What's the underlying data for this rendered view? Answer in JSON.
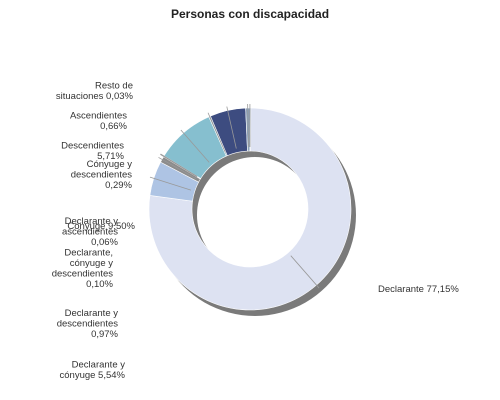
{
  "chart_data": {
    "type": "pie",
    "variant": "donut",
    "title": "Personas con discapacidad",
    "legend": "none",
    "slices": [
      {
        "name": "Declarante",
        "value": 77.15,
        "color": "#dde2f2",
        "label_lines": [
          "Declarante 77,15%"
        ]
      },
      {
        "name": "Declarante y cónyuge",
        "value": 5.54,
        "color": "#aec4e4",
        "label_lines": [
          "Declarante y",
          "cónyuge 5,54%"
        ]
      },
      {
        "name": "Declarante y descendientes",
        "value": 0.97,
        "color": "#8c8c8c",
        "label_lines": [
          "Declarante y",
          "descendientes",
          "0,97%"
        ]
      },
      {
        "name": "Declarante, cónyuge y descendientes",
        "value": 0.1,
        "color": "#7b87a8",
        "label_lines": [
          "Declarante,",
          "cónyuge y",
          "descendientes",
          "0,10%"
        ]
      },
      {
        "name": "Declarante y ascendientes",
        "value": 0.06,
        "color": "#5c6f98",
        "label_lines": [
          "Declarante y",
          "ascendientes",
          "0,06%"
        ]
      },
      {
        "name": "Cónyuge",
        "value": 9.5,
        "color": "#86bfcf",
        "label_lines": [
          "Cónyuge 9,50%"
        ]
      },
      {
        "name": "Cónyuge y descendientes",
        "value": 0.29,
        "color": "#6f8fa3",
        "label_lines": [
          "Cónyuge y",
          "descendientes",
          "0,29%"
        ]
      },
      {
        "name": "Descendientes",
        "value": 5.71,
        "color": "#3d4c80",
        "label_lines": [
          "Descendientes",
          "5,71%"
        ]
      },
      {
        "name": "Ascendientes",
        "value": 0.66,
        "color": "#8aa0b8",
        "label_lines": [
          "Ascendientes",
          "0,66%"
        ]
      },
      {
        "name": "Resto de situaciones",
        "value": 0.03,
        "color": "#6f8a9e",
        "label_lines": [
          "Resto de",
          "situaciones 0,03%"
        ]
      }
    ]
  }
}
